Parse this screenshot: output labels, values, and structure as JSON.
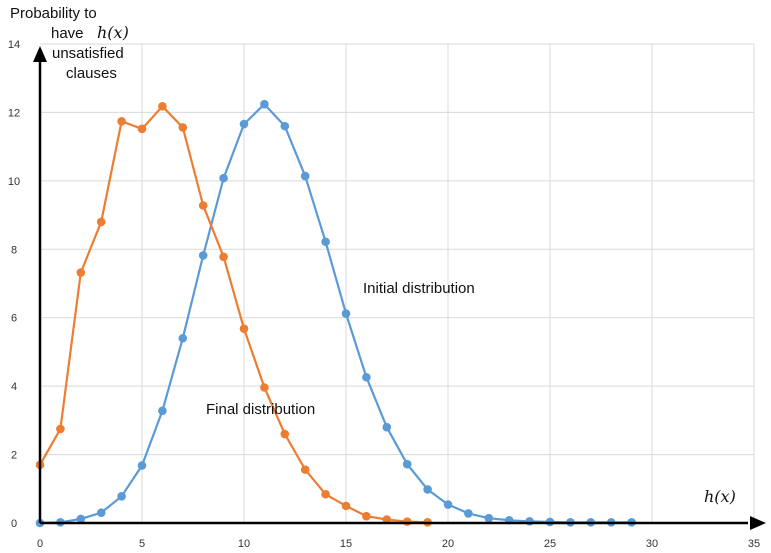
{
  "chart_data": {
    "type": "line",
    "ylabel_lines": [
      "Probability to",
      "have",
      "unsatisfied",
      "clauses"
    ],
    "ylabel_math": "h(x)",
    "xlabel": "h(x)",
    "xlim": [
      0,
      35
    ],
    "ylim": [
      0,
      14
    ],
    "xticks": [
      0,
      5,
      10,
      15,
      20,
      25,
      30,
      35
    ],
    "yticks": [
      0,
      2,
      4,
      6,
      8,
      10,
      12,
      14
    ],
    "grid": true,
    "series": [
      {
        "name": "Initial distribution",
        "color": "#5b9bd5",
        "x": [
          0,
          1,
          2,
          3,
          4,
          5,
          6,
          7,
          8,
          9,
          10,
          11,
          12,
          13,
          14,
          15,
          16,
          17,
          18,
          19,
          20,
          21,
          22,
          23,
          24,
          25,
          26,
          27,
          28,
          29
        ],
        "y": [
          0.0,
          0.02,
          0.12,
          0.3,
          0.78,
          1.68,
          3.28,
          5.4,
          7.82,
          10.08,
          11.66,
          12.24,
          11.6,
          10.14,
          8.22,
          6.12,
          4.26,
          2.8,
          1.72,
          0.98,
          0.54,
          0.28,
          0.14,
          0.08,
          0.05,
          0.03,
          0.02,
          0.02,
          0.02,
          0.02
        ]
      },
      {
        "name": "Final distribution",
        "color": "#ed7d31",
        "x": [
          0,
          1,
          2,
          3,
          4,
          5,
          6,
          7,
          8,
          9,
          10,
          11,
          12,
          13,
          14,
          15,
          16,
          17,
          18,
          19
        ],
        "y": [
          1.7,
          2.75,
          7.32,
          8.8,
          11.74,
          11.52,
          12.18,
          11.56,
          9.28,
          7.78,
          5.68,
          3.96,
          2.6,
          1.56,
          0.84,
          0.5,
          0.2,
          0.1,
          0.04,
          0.02
        ]
      }
    ]
  }
}
